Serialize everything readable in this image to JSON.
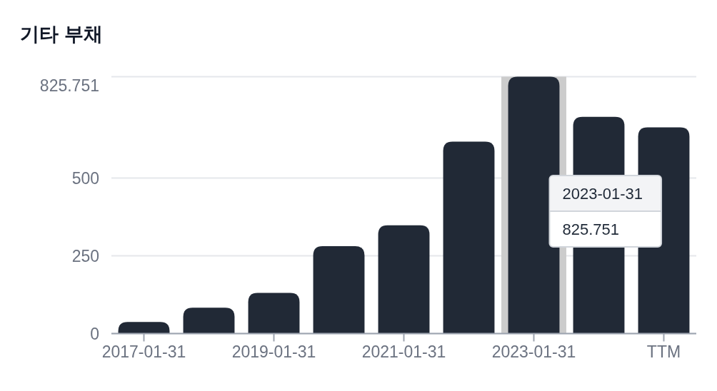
{
  "chart_data": {
    "type": "bar",
    "title": "기타 부채",
    "categories": [
      "2017-01-31",
      null,
      "2019-01-31",
      null,
      "2021-01-31",
      null,
      "2023-01-31",
      null,
      "TTM"
    ],
    "values": [
      37,
      83,
      131,
      281,
      348,
      617,
      825.751,
      697,
      663
    ],
    "color": "#212936",
    "ylim": [
      0,
      825.751
    ],
    "yticks": [
      0,
      250,
      500,
      825.751
    ],
    "grid": "y",
    "bands": [
      {
        "axis": "x",
        "from": "2023-01-31",
        "to": "2023-01-31",
        "color": "#cccccc"
      }
    ],
    "annotations": [
      "2023-01-31",
      "825.751"
    ]
  }
}
